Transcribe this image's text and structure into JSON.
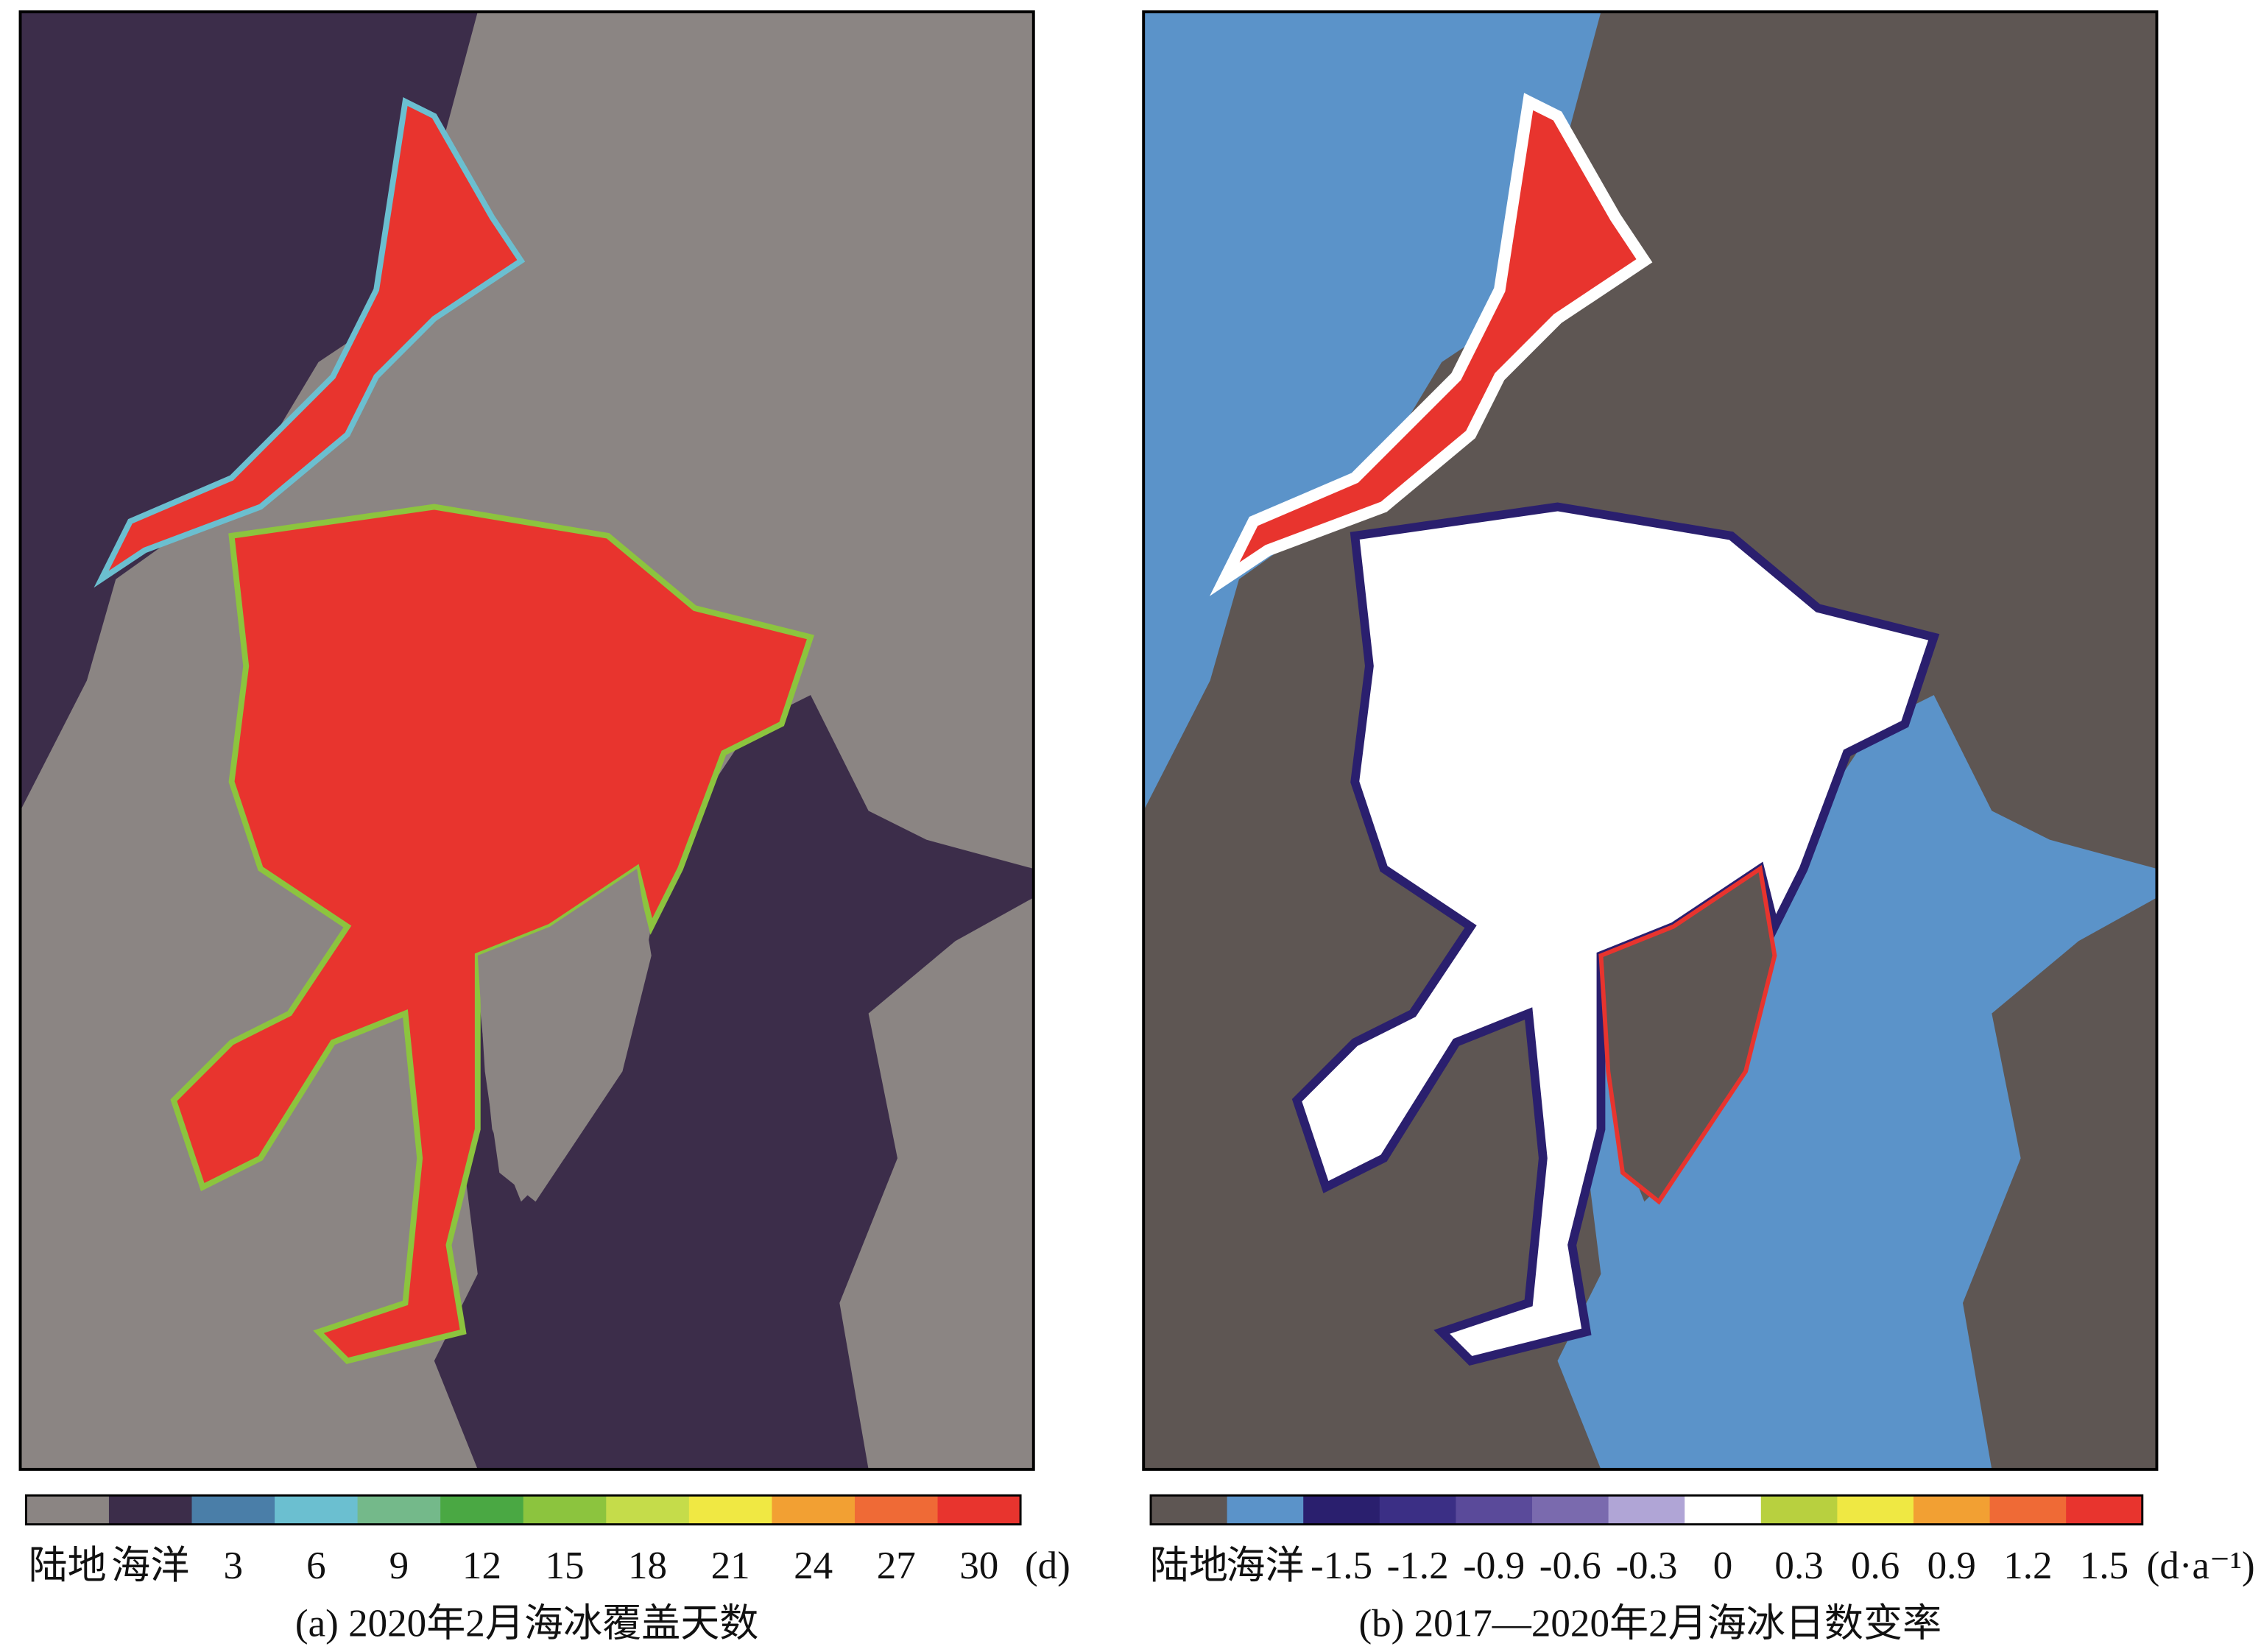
{
  "panels": [
    {
      "caption": "(a) 2020年2月海冰覆盖天数",
      "unit": "(d)",
      "legend": [
        {
          "label": "陆地",
          "color": "#8b8583"
        },
        {
          "label": "海洋",
          "color": "#3c2d4a"
        },
        {
          "label": "3",
          "color": "#4a7ea8"
        },
        {
          "label": "6",
          "color": "#6bbfd0"
        },
        {
          "label": "9",
          "color": "#74b98a"
        },
        {
          "label": "12",
          "color": "#4aa843"
        },
        {
          "label": "15",
          "color": "#8cc43e"
        },
        {
          "label": "18",
          "color": "#c5dc4a"
        },
        {
          "label": "21",
          "color": "#f0e843"
        },
        {
          "label": "24",
          "color": "#f2a033"
        },
        {
          "label": "27",
          "color": "#ef6a36"
        },
        {
          "label": "30",
          "color": "#e8342e"
        }
      ]
    },
    {
      "caption": "(b) 2017—2020年2月海冰日数变率",
      "unit": "(d·a⁻¹)",
      "legend": [
        {
          "label": "陆地",
          "color": "#5e5653"
        },
        {
          "label": "海洋",
          "color": "#5b93c9"
        },
        {
          "label": "-1.5",
          "color": "#2a1f6e"
        },
        {
          "label": "-1.2",
          "color": "#3b2f85"
        },
        {
          "label": "-0.9",
          "color": "#5a4a9a"
        },
        {
          "label": "-0.6",
          "color": "#7a6aae"
        },
        {
          "label": "-0.3",
          "color": "#b0a5d6"
        },
        {
          "label": "0",
          "color": "#ffffff"
        },
        {
          "label": "0.3",
          "color": "#b8d03f"
        },
        {
          "label": "0.6",
          "color": "#efe843"
        },
        {
          "label": "0.9",
          "color": "#f2a033"
        },
        {
          "label": "1.2",
          "color": "#ef6a36"
        },
        {
          "label": "1.5",
          "color": "#e8342e"
        }
      ]
    }
  ]
}
